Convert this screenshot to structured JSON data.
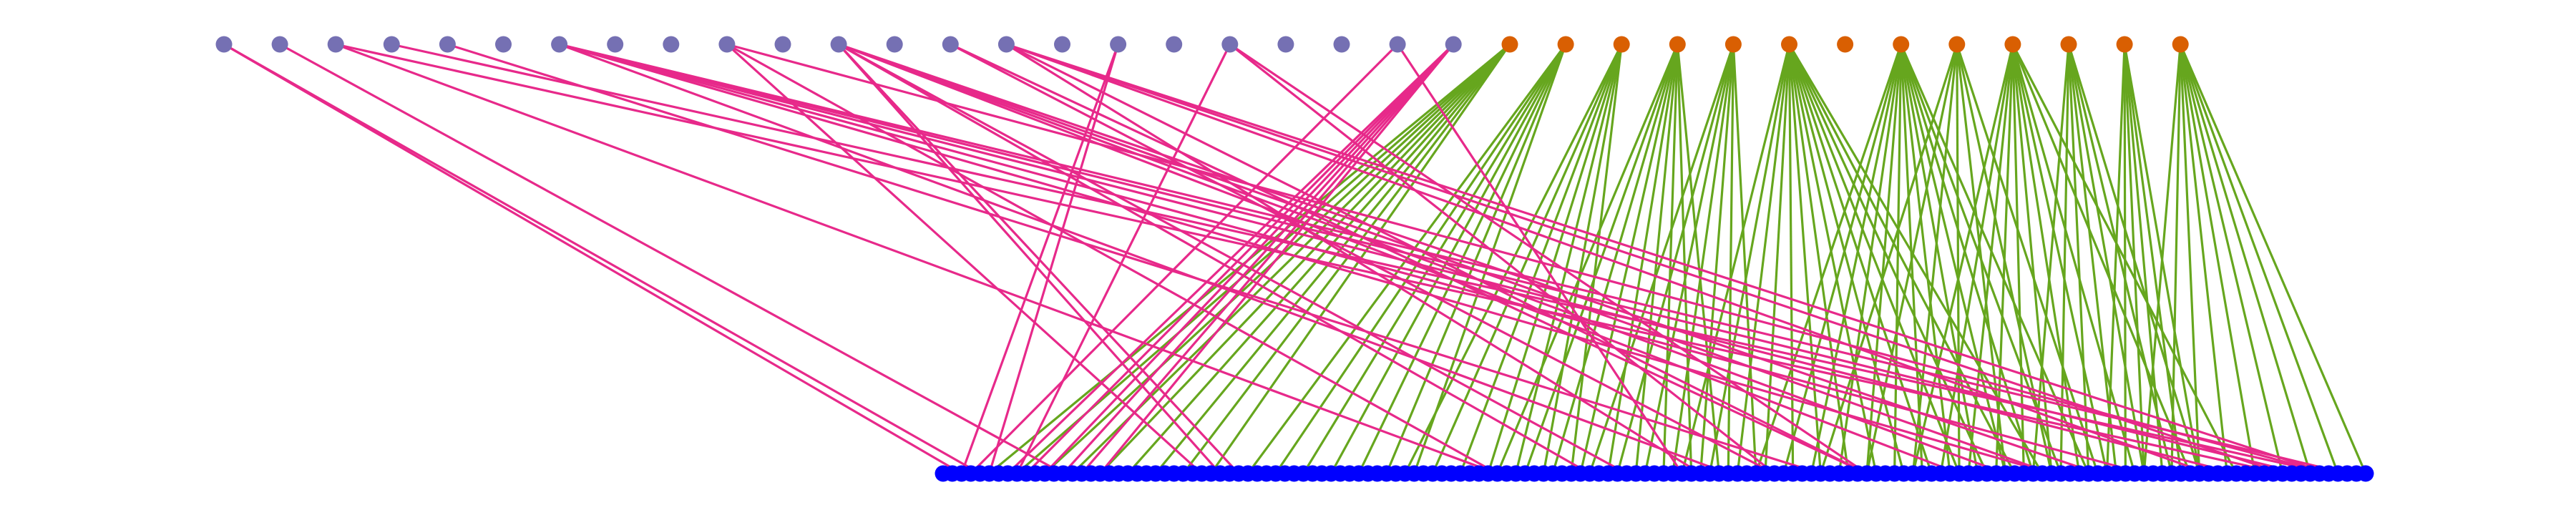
{
  "diagram": {
    "type": "bipartite-graph",
    "colors": {
      "background": "#ffffff",
      "purple_node": "#7570b3",
      "orange_node": "#d95f02",
      "blue_node": "#0000ff",
      "purple_edge": "#e7298a",
      "orange_edge": "#66a61e"
    },
    "top_purple_count": 23,
    "top_orange_count": 13,
    "bottom_count": 155,
    "purple_edges": [
      [
        0,
        2
      ],
      [
        0,
        4
      ],
      [
        1,
        13
      ],
      [
        2,
        60
      ],
      [
        2,
        145
      ],
      [
        3,
        150
      ],
      [
        4,
        95
      ],
      [
        6,
        130
      ],
      [
        6,
        140
      ],
      [
        6,
        147
      ],
      [
        6,
        152
      ],
      [
        6,
        120
      ],
      [
        6,
        85
      ],
      [
        9,
        150
      ],
      [
        9,
        28
      ],
      [
        9,
        60
      ],
      [
        11,
        70
      ],
      [
        11,
        74
      ],
      [
        11,
        110
      ],
      [
        11,
        115
      ],
      [
        11,
        120
      ],
      [
        11,
        125
      ],
      [
        11,
        30
      ],
      [
        11,
        32
      ],
      [
        13,
        100
      ],
      [
        13,
        90
      ],
      [
        14,
        150
      ],
      [
        14,
        137
      ],
      [
        14,
        145
      ],
      [
        14,
        82
      ],
      [
        14,
        100
      ],
      [
        16,
        2
      ],
      [
        16,
        5
      ],
      [
        18,
        8
      ],
      [
        18,
        90
      ],
      [
        18,
        100
      ],
      [
        21,
        3
      ],
      [
        21,
        80
      ],
      [
        22,
        7
      ],
      [
        22,
        9
      ],
      [
        22,
        11
      ],
      [
        22,
        13
      ],
      [
        22,
        15
      ],
      [
        22,
        17
      ]
    ],
    "orange_edges": [
      [
        0,
        5
      ],
      [
        0,
        8
      ],
      [
        0,
        11
      ],
      [
        0,
        14
      ],
      [
        0,
        17
      ],
      [
        0,
        20
      ],
      [
        0,
        23
      ],
      [
        0,
        26
      ],
      [
        0,
        29
      ],
      [
        1,
        33
      ],
      [
        1,
        36
      ],
      [
        1,
        39
      ],
      [
        1,
        42
      ],
      [
        1,
        45
      ],
      [
        1,
        48
      ],
      [
        1,
        51
      ],
      [
        2,
        50
      ],
      [
        2,
        53
      ],
      [
        2,
        56
      ],
      [
        2,
        59
      ],
      [
        2,
        62
      ],
      [
        2,
        65
      ],
      [
        2,
        68
      ],
      [
        3,
        60
      ],
      [
        3,
        63
      ],
      [
        3,
        66
      ],
      [
        3,
        69
      ],
      [
        3,
        72
      ],
      [
        3,
        75
      ],
      [
        3,
        78
      ],
      [
        3,
        81
      ],
      [
        3,
        84
      ],
      [
        4,
        70
      ],
      [
        4,
        73
      ],
      [
        4,
        76
      ],
      [
        4,
        79
      ],
      [
        4,
        82
      ],
      [
        4,
        85
      ],
      [
        4,
        88
      ],
      [
        5,
        80
      ],
      [
        5,
        83
      ],
      [
        5,
        86
      ],
      [
        5,
        89
      ],
      [
        5,
        92
      ],
      [
        5,
        95
      ],
      [
        5,
        98
      ],
      [
        5,
        101
      ],
      [
        5,
        104
      ],
      [
        5,
        107
      ],
      [
        5,
        110
      ],
      [
        5,
        113
      ],
      [
        5,
        116
      ],
      [
        5,
        119
      ],
      [
        7,
        88
      ],
      [
        7,
        91
      ],
      [
        7,
        94
      ],
      [
        7,
        97
      ],
      [
        7,
        100
      ],
      [
        7,
        103
      ],
      [
        7,
        106
      ],
      [
        7,
        109
      ],
      [
        7,
        112
      ],
      [
        7,
        115
      ],
      [
        7,
        118
      ],
      [
        7,
        121
      ],
      [
        7,
        124
      ],
      [
        8,
        95
      ],
      [
        8,
        100
      ],
      [
        8,
        105
      ],
      [
        8,
        110
      ],
      [
        8,
        115
      ],
      [
        8,
        120
      ],
      [
        8,
        125
      ],
      [
        9,
        105
      ],
      [
        9,
        108
      ],
      [
        9,
        111
      ],
      [
        9,
        114
      ],
      [
        9,
        117
      ],
      [
        9,
        120
      ],
      [
        9,
        123
      ],
      [
        9,
        126
      ],
      [
        9,
        129
      ],
      [
        9,
        135
      ],
      [
        9,
        140
      ],
      [
        10,
        118
      ],
      [
        10,
        121
      ],
      [
        10,
        124
      ],
      [
        10,
        127
      ],
      [
        10,
        130
      ],
      [
        10,
        133
      ],
      [
        10,
        136
      ],
      [
        11,
        126
      ],
      [
        11,
        128
      ],
      [
        11,
        130
      ],
      [
        11,
        132
      ],
      [
        11,
        134
      ],
      [
        11,
        136
      ],
      [
        12,
        130
      ],
      [
        12,
        133
      ],
      [
        12,
        136
      ],
      [
        12,
        139
      ],
      [
        12,
        142
      ],
      [
        12,
        145
      ],
      [
        12,
        148
      ],
      [
        12,
        151
      ],
      [
        12,
        154
      ]
    ]
  }
}
